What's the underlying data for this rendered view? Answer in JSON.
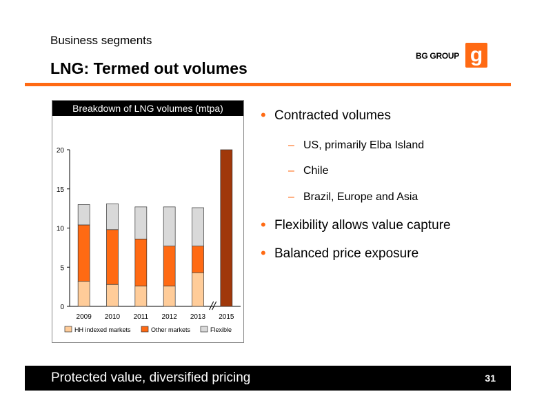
{
  "header": {
    "supertitle": "Business segments",
    "title": "LNG: Termed out volumes",
    "logo_text": "BG GROUP",
    "logo_mark": "g",
    "accent_color": "#ff6a13"
  },
  "chart_data": {
    "type": "bar",
    "stacked": true,
    "title": "Breakdown of LNG volumes (mtpa)",
    "categories": [
      "2009",
      "2010",
      "2011",
      "2012",
      "2013",
      "2015"
    ],
    "ylim": [
      0,
      20
    ],
    "yticks": [
      0,
      5,
      10,
      15,
      20
    ],
    "axis_break_before": "2015",
    "series": [
      {
        "name": "HH indexed markets",
        "color": "#ffcc99",
        "values": [
          3.2,
          2.8,
          2.6,
          2.6,
          4.3,
          null
        ]
      },
      {
        "name": "Other markets",
        "color": "#ff6a13",
        "values": [
          7.2,
          7.0,
          6.0,
          5.1,
          3.4,
          null
        ]
      },
      {
        "name": "Flexible",
        "color": "#d9d9d9",
        "values": [
          2.6,
          3.3,
          4.1,
          5.0,
          4.9,
          null
        ]
      }
    ],
    "totals_only": [
      {
        "category": "2015",
        "value": 20,
        "color": "#a0380a"
      }
    ],
    "legend_position": "bottom"
  },
  "bullets": [
    {
      "text": "Contracted volumes",
      "subs": [
        "US, primarily Elba Island",
        "Chile",
        "Brazil, Europe and Asia"
      ]
    },
    {
      "text": "Flexibility allows value capture",
      "subs": []
    },
    {
      "text": "Balanced price exposure",
      "subs": []
    }
  ],
  "footer": {
    "text": "Protected value, diversified pricing",
    "page_number": "31"
  }
}
